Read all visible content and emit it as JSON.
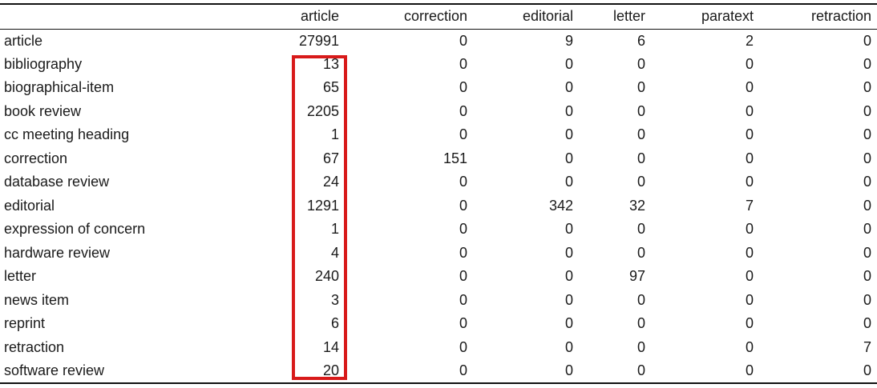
{
  "table": {
    "columns": [
      "",
      "article",
      "correction",
      "editorial",
      "letter",
      "paratext",
      "retraction"
    ],
    "rows": [
      {
        "label": "article",
        "values": [
          "27991",
          "0",
          "9",
          "6",
          "2",
          "0"
        ]
      },
      {
        "label": "bibliography",
        "values": [
          "13",
          "0",
          "0",
          "0",
          "0",
          "0"
        ]
      },
      {
        "label": "biographical-item",
        "values": [
          "65",
          "0",
          "0",
          "0",
          "0",
          "0"
        ]
      },
      {
        "label": "book review",
        "values": [
          "2205",
          "0",
          "0",
          "0",
          "0",
          "0"
        ]
      },
      {
        "label": "cc meeting heading",
        "values": [
          "1",
          "0",
          "0",
          "0",
          "0",
          "0"
        ]
      },
      {
        "label": "correction",
        "values": [
          "67",
          "151",
          "0",
          "0",
          "0",
          "0"
        ]
      },
      {
        "label": "database review",
        "values": [
          "24",
          "0",
          "0",
          "0",
          "0",
          "0"
        ]
      },
      {
        "label": "editorial",
        "values": [
          "1291",
          "0",
          "342",
          "32",
          "7",
          "0"
        ]
      },
      {
        "label": "expression of concern",
        "values": [
          "1",
          "0",
          "0",
          "0",
          "0",
          "0"
        ]
      },
      {
        "label": "hardware review",
        "values": [
          "4",
          "0",
          "0",
          "0",
          "0",
          "0"
        ]
      },
      {
        "label": "letter",
        "values": [
          "240",
          "0",
          "0",
          "97",
          "0",
          "0"
        ]
      },
      {
        "label": "news item",
        "values": [
          "3",
          "0",
          "0",
          "0",
          "0",
          "0"
        ]
      },
      {
        "label": "reprint",
        "values": [
          "6",
          "0",
          "0",
          "0",
          "0",
          "0"
        ]
      },
      {
        "label": "retraction",
        "values": [
          "14",
          "0",
          "0",
          "0",
          "0",
          "7"
        ]
      },
      {
        "label": "software review",
        "values": [
          "20",
          "0",
          "0",
          "0",
          "0",
          "0"
        ]
      }
    ]
  },
  "highlight": {
    "color": "#d81a1a",
    "column": "article",
    "from_row": "bibliography",
    "to_row": "software review"
  }
}
